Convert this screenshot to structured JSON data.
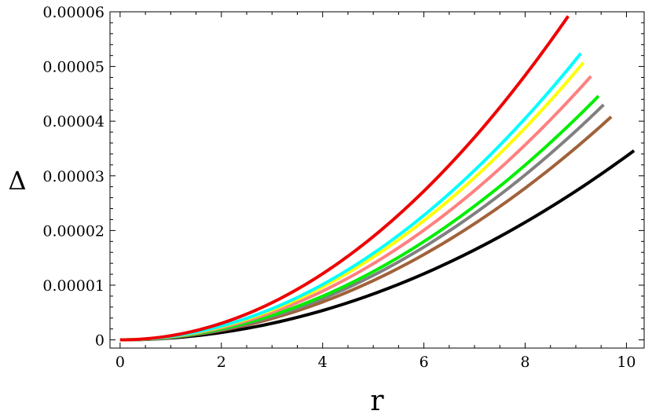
{
  "chart_data": {
    "type": "line",
    "xlabel": "r",
    "ylabel": "Δ",
    "xlim": [
      -0.2,
      10.35
    ],
    "ylim": [
      -1.5e-06,
      6e-05
    ],
    "x_ticks": [
      0,
      2,
      4,
      6,
      8,
      10
    ],
    "x_tick_labels": [
      "0",
      "2",
      "4",
      "6",
      "8",
      "10"
    ],
    "y_ticks": [
      0,
      1e-05,
      2e-05,
      3e-05,
      4e-05,
      5e-05,
      6e-05
    ],
    "y_tick_labels": [
      "0",
      "0.00001",
      "0.00002",
      "0.00003",
      "0.00004",
      "0.00005",
      "0.00006"
    ],
    "grid": false,
    "series": [
      {
        "color": "#000000",
        "x_max": 10.15,
        "y_end": 3.46e-05
      },
      {
        "color": "#a0623a",
        "x_max": 9.7,
        "y_end": 4.08e-05
      },
      {
        "color": "#808080",
        "x_max": 9.55,
        "y_end": 4.3e-05
      },
      {
        "color": "#00ee00",
        "x_max": 9.45,
        "y_end": 4.46e-05
      },
      {
        "color": "#ff8080",
        "x_max": 9.3,
        "y_end": 4.82e-05
      },
      {
        "color": "#ffff00",
        "x_max": 9.15,
        "y_end": 5.07e-05
      },
      {
        "color": "#00ffff",
        "x_max": 9.1,
        "y_end": 5.24e-05
      },
      {
        "color": "#ee0000",
        "x_max": 8.85,
        "y_end": 5.92e-05
      }
    ]
  }
}
